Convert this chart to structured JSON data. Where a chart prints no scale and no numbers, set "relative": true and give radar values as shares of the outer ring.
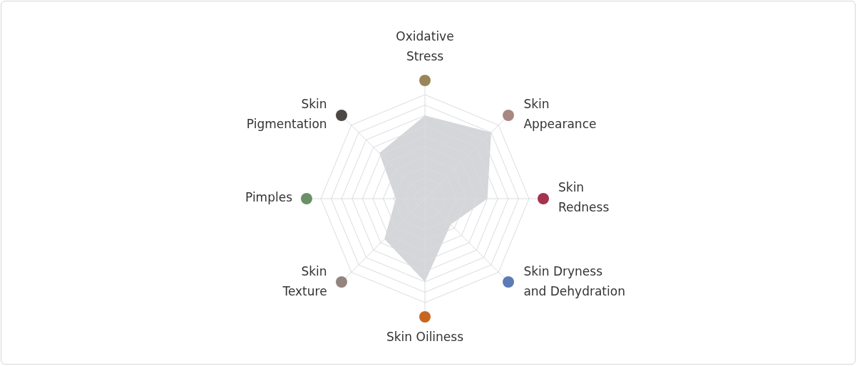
{
  "chart_data": {
    "type": "radar",
    "relative": true,
    "grid": true,
    "categories": [
      "Oxidative\nStress",
      "Skin\nAppearance",
      "Skin\nRedness",
      "Skin Dryness\nand Dehydration",
      "Skin Oiliness",
      "Skin\nTexture",
      "Pimples",
      "Skin\nPigmentation"
    ],
    "series": [
      {
        "color": "#d5d6d9",
        "values": [
          0.8,
          0.9,
          0.6,
          0.35,
          0.8,
          0.55,
          0.28,
          0.62
        ]
      }
    ]
  }
}
